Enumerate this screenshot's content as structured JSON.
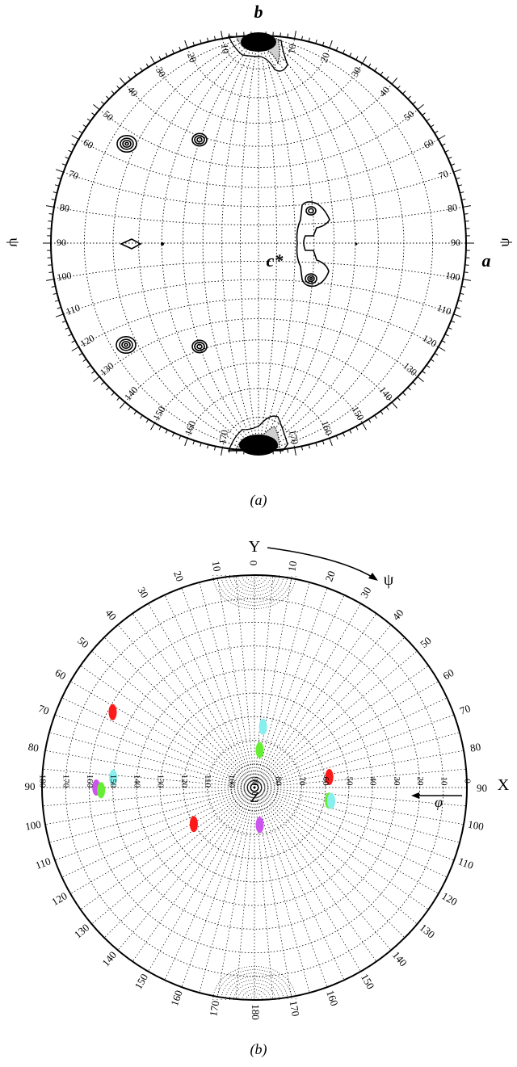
{
  "panel_a": {
    "caption": "(a)",
    "axis_top": "b",
    "axis_right": "a",
    "center_label": "c*",
    "psi_symbol": "ψ",
    "psi_ticks": [
      "10",
      "20",
      "30",
      "40",
      "50",
      "60",
      "70",
      "80",
      "90",
      "100",
      "110",
      "120",
      "130",
      "140",
      "150",
      "160",
      "170"
    ],
    "ink_color": "#000000"
  },
  "panel_b": {
    "caption": "(b)",
    "axis_top": "Y",
    "axis_right": "X",
    "center_label": "Z",
    "psi_symbol": "ψ",
    "phi_symbol": "φ",
    "psi_ticks": [
      "0",
      "10",
      "20",
      "30",
      "40",
      "50",
      "60",
      "70",
      "80",
      "90",
      "100",
      "110",
      "120",
      "130",
      "140",
      "150",
      "160",
      "170",
      "180"
    ],
    "phi_ticks": [
      "0",
      "10",
      "20",
      "30",
      "40",
      "50",
      "60",
      "70",
      "80",
      "90",
      "100",
      "110",
      "120",
      "130",
      "140",
      "150",
      "160",
      "170",
      "180"
    ],
    "spot_colors": {
      "red": "#ff1a1a",
      "green": "#66ee33",
      "cyan": "#88eeee",
      "magenta": "#cc55ee"
    },
    "spots": [
      {
        "color": "green",
        "psi": 8,
        "phi": 74
      },
      {
        "color": "cyan",
        "psi": 8,
        "phi": 64
      },
      {
        "color": "red",
        "psi": 62,
        "phi": 158
      },
      {
        "color": "red",
        "psi": 82,
        "phi": 58
      },
      {
        "color": "cyan",
        "psi": 86,
        "phi": 150
      },
      {
        "color": "magenta",
        "psi": 90,
        "phi": 157
      },
      {
        "color": "green",
        "psi": 91,
        "phi": 155
      },
      {
        "color": "green",
        "psi": 100,
        "phi": 58
      },
      {
        "color": "cyan",
        "psi": 100,
        "phi": 57
      },
      {
        "color": "red",
        "psi": 121,
        "phi": 120
      },
      {
        "color": "magenta",
        "psi": 172,
        "phi": 74
      }
    ]
  }
}
